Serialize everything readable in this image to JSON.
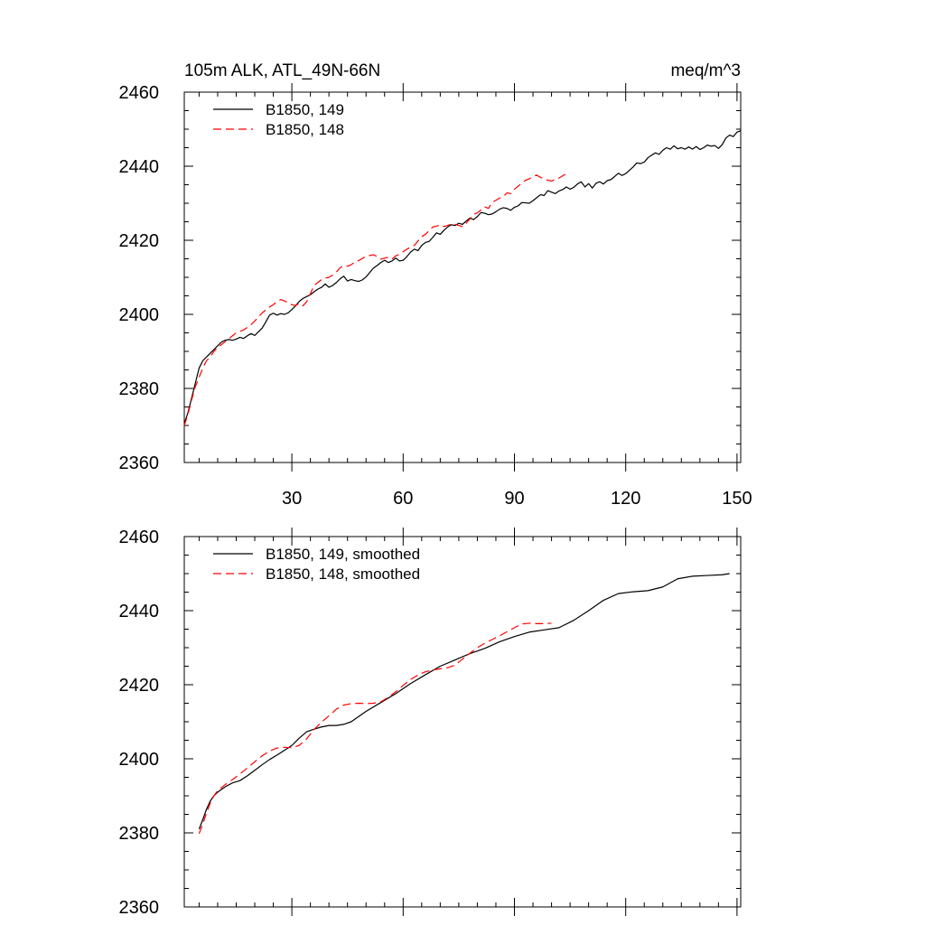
{
  "figure": {
    "left_title": "105m ALK, ATL_49N-66N",
    "right_title": "meq/m^3"
  },
  "chart_data": [
    {
      "type": "line",
      "title": "105m ALK, ATL_49N-66N",
      "units": "meq/m^3",
      "xlim": [
        1,
        151
      ],
      "ylim": [
        2360,
        2460
      ],
      "x_ticks": [
        30,
        60,
        90,
        120,
        150
      ],
      "x_tick_labels": [
        "30",
        "60",
        "90",
        "120",
        "150"
      ],
      "y_ticks": [
        2360,
        2380,
        2400,
        2420,
        2440,
        2460
      ],
      "y_tick_labels": [
        "2360",
        "2380",
        "2400",
        "2420",
        "2440",
        "2460"
      ],
      "legend_position": "top-left",
      "series": [
        {
          "name": "B1850, 149",
          "color": "#000000",
          "dash": "solid",
          "x": [
            1,
            2,
            3,
            4,
            5,
            6,
            7,
            8,
            9,
            10,
            11,
            12,
            13,
            14,
            15,
            16,
            17,
            18,
            19,
            20,
            21,
            22,
            23,
            24,
            25,
            26,
            27,
            28,
            29,
            30,
            31,
            32,
            33,
            34,
            35,
            36,
            37,
            38,
            39,
            40,
            41,
            42,
            43,
            44,
            45,
            46,
            47,
            48,
            49,
            50,
            51,
            52,
            53,
            54,
            55,
            56,
            57,
            58,
            59,
            60,
            61,
            62,
            63,
            64,
            65,
            66,
            67,
            68,
            69,
            70,
            71,
            72,
            73,
            74,
            75,
            76,
            77,
            78,
            79,
            80,
            81,
            82,
            83,
            84,
            85,
            86,
            87,
            88,
            89,
            90,
            91,
            92,
            93,
            94,
            95,
            96,
            97,
            98,
            99,
            100,
            101,
            102,
            103,
            104,
            105,
            106,
            107,
            108,
            109,
            110,
            111,
            112,
            113,
            114,
            115,
            116,
            117,
            118,
            119,
            120,
            121,
            122,
            123,
            124,
            125,
            126,
            127,
            128,
            129,
            130,
            131,
            132,
            133,
            134,
            135,
            136,
            137,
            138,
            139,
            140,
            141,
            142,
            143,
            144,
            145,
            146,
            147,
            148,
            149,
            150,
            151
          ],
          "values": [
            2370.5,
            2373.5,
            2377.5,
            2381.5,
            2385.5,
            2387.5,
            2388.5,
            2389.5,
            2390.5,
            2391.5,
            2392.5,
            2393.0,
            2393.2,
            2393.0,
            2393.3,
            2393.8,
            2393.5,
            2394.2,
            2394.8,
            2394.3,
            2395.3,
            2396.3,
            2398.0,
            2399.8,
            2400.3,
            2399.8,
            2400.2,
            2400.0,
            2400.4,
            2401.3,
            2402.3,
            2403.5,
            2404.3,
            2404.8,
            2405.3,
            2406.1,
            2406.8,
            2407.3,
            2408.2,
            2407.3,
            2407.8,
            2408.6,
            2409.6,
            2410.3,
            2409.0,
            2409.4,
            2409.1,
            2408.9,
            2409.3,
            2410.1,
            2411.3,
            2412.5,
            2413.2,
            2414.0,
            2414.6,
            2414.0,
            2414.4,
            2415.2,
            2414.4,
            2414.6,
            2415.6,
            2416.8,
            2417.6,
            2417.2,
            2418.6,
            2419.4,
            2419.7,
            2420.8,
            2422.0,
            2421.6,
            2422.7,
            2423.6,
            2424.2,
            2424.0,
            2424.6,
            2424.3,
            2425.2,
            2426.0,
            2425.6,
            2426.4,
            2427.5,
            2427.3,
            2426.9,
            2427.1,
            2427.7,
            2428.4,
            2428.8,
            2428.6,
            2428.1,
            2428.9,
            2429.3,
            2430.2,
            2430.1,
            2430.0,
            2430.7,
            2431.5,
            2432.3,
            2432.1,
            2433.4,
            2433.0,
            2432.6,
            2433.3,
            2433.7,
            2434.4,
            2433.8,
            2434.3,
            2435.2,
            2435.8,
            2434.4,
            2435.3,
            2434.1,
            2435.4,
            2435.8,
            2435.2,
            2436.1,
            2436.4,
            2437.2,
            2438.1,
            2437.5,
            2438.0,
            2438.9,
            2439.8,
            2440.9,
            2440.7,
            2441.1,
            2442.3,
            2443.0,
            2443.6,
            2443.2,
            2444.3,
            2445.0,
            2444.6,
            2445.5,
            2444.7,
            2445.0,
            2444.6,
            2445.2,
            2444.6,
            2445.3,
            2444.5,
            2445.0,
            2445.7,
            2445.4,
            2445.6,
            2444.8,
            2445.8,
            2447.6,
            2448.4,
            2448.0,
            2449.2,
            2449.6
          ],
          "x_ext": [],
          "values_ext": []
        },
        {
          "name": "B1850, 148",
          "color": "#ff0000",
          "dash": "dashed",
          "x": [
            1,
            2,
            3,
            4,
            5,
            6,
            7,
            8,
            9,
            10,
            11,
            12,
            13,
            14,
            15,
            16,
            17,
            18,
            19,
            20,
            21,
            22,
            23,
            24,
            25,
            26,
            27,
            28,
            29,
            30,
            31,
            32,
            33,
            34,
            35,
            36,
            37,
            38,
            39,
            40,
            41,
            42,
            43,
            44,
            45,
            46,
            47,
            48,
            49,
            50,
            51,
            52,
            53,
            54,
            55,
            56,
            57,
            58,
            59,
            60,
            61,
            62,
            63,
            64,
            65,
            66,
            67,
            68,
            69,
            70,
            71,
            72,
            73,
            74,
            75,
            76,
            77,
            78,
            79,
            80,
            81,
            82,
            83,
            84,
            85,
            86,
            87,
            88,
            89,
            90,
            91,
            92,
            93,
            94,
            95,
            96,
            97,
            98,
            99,
            100,
            101,
            102,
            103,
            104
          ],
          "values": [
            2370.0,
            2373.0,
            2377.0,
            2380.5,
            2383.0,
            2385.5,
            2387.5,
            2388.5,
            2390.0,
            2391.0,
            2391.8,
            2392.6,
            2393.4,
            2394.2,
            2395.0,
            2395.4,
            2395.8,
            2396.5,
            2397.2,
            2398.2,
            2399.3,
            2400.4,
            2401.2,
            2402.0,
            2402.6,
            2403.5,
            2404.0,
            2403.6,
            2403.2,
            2402.6,
            2402.4,
            2402.9,
            2402.3,
            2403.4,
            2405.6,
            2407.8,
            2408.6,
            2409.4,
            2409.8,
            2410.0,
            2410.6,
            2411.4,
            2412.6,
            2413.2,
            2413.0,
            2413.4,
            2414.2,
            2414.5,
            2415.1,
            2415.7,
            2415.9,
            2416.1,
            2415.6,
            2414.9,
            2415.2,
            2415.4,
            2414.9,
            2415.8,
            2416.2,
            2416.9,
            2417.6,
            2418.1,
            2418.6,
            2419.8,
            2421.0,
            2421.6,
            2422.6,
            2423.6,
            2423.8,
            2424.2,
            2423.7,
            2424.0,
            2424.4,
            2424.3,
            2424.0,
            2423.7,
            2424.6,
            2425.8,
            2427.0,
            2427.4,
            2428.2,
            2429.0,
            2428.6,
            2430.2,
            2430.8,
            2431.4,
            2431.8,
            2432.8,
            2432.6,
            2433.8,
            2434.6,
            2435.4,
            2436.2,
            2436.6,
            2437.2,
            2437.6,
            2437.0,
            2436.6,
            2436.2,
            2436.0,
            2436.4,
            2436.8,
            2437.4,
            2438.0
          ],
          "x_ext": [],
          "values_ext": []
        }
      ]
    },
    {
      "type": "line",
      "title": "",
      "xlim": [
        1,
        151
      ],
      "ylim": [
        2360,
        2460
      ],
      "x_ticks": [
        30,
        60,
        90,
        120,
        150
      ],
      "x_tick_labels": [],
      "y_ticks": [
        2360,
        2380,
        2400,
        2420,
        2440,
        2460
      ],
      "y_tick_labels": [
        "2360",
        "2380",
        "2400",
        "2420",
        "2440",
        "2460"
      ],
      "legend_position": "top-left",
      "series": [
        {
          "name": "B1850, 149, smoothed",
          "color": "#000000",
          "dash": "solid",
          "x": [
            5,
            6,
            7,
            8,
            9,
            10,
            12,
            14,
            16,
            18,
            20,
            22,
            24,
            26,
            28,
            30,
            32,
            34,
            36,
            38,
            40,
            42,
            44,
            46,
            48,
            50,
            54,
            58,
            62,
            66,
            70,
            74,
            78,
            82,
            86,
            90,
            94,
            98,
            102,
            106,
            110,
            114,
            118,
            122,
            126,
            130,
            134,
            138,
            142,
            146,
            148
          ],
          "values": [
            2381.0,
            2383.6,
            2386.4,
            2388.6,
            2390.0,
            2391.0,
            2392.4,
            2393.5,
            2394.1,
            2395.4,
            2396.9,
            2398.4,
            2399.8,
            2401.0,
            2402.3,
            2403.6,
            2405.6,
            2407.3,
            2408.0,
            2408.6,
            2409.0,
            2409.0,
            2409.3,
            2410.0,
            2411.4,
            2412.8,
            2415.2,
            2417.6,
            2420.3,
            2422.7,
            2425.0,
            2426.7,
            2428.4,
            2429.8,
            2431.6,
            2433.0,
            2434.2,
            2434.8,
            2435.4,
            2437.4,
            2440.0,
            2442.8,
            2444.6,
            2445.1,
            2445.4,
            2446.4,
            2448.6,
            2449.3,
            2449.5,
            2449.7,
            2450.0
          ],
          "x_ext": [],
          "values_ext": []
        },
        {
          "name": "B1850, 148, smoothed",
          "color": "#ff0000",
          "dash": "dashed",
          "x": [
            5,
            6,
            7,
            8,
            9,
            10,
            12,
            14,
            16,
            18,
            20,
            22,
            24,
            26,
            28,
            30,
            32,
            34,
            36,
            38,
            40,
            42,
            44,
            46,
            48,
            50,
            52,
            54,
            56,
            58,
            60,
            62,
            64,
            66,
            68,
            70,
            72,
            74,
            76,
            78,
            80,
            82,
            84,
            86,
            88,
            90,
            92,
            94,
            96,
            98,
            100
          ],
          "values": [
            2379.8,
            2382.4,
            2385.4,
            2388.0,
            2390.0,
            2391.4,
            2393.0,
            2394.4,
            2395.9,
            2397.5,
            2399.2,
            2400.8,
            2402.1,
            2402.9,
            2403.1,
            2403.0,
            2403.6,
            2405.4,
            2407.9,
            2409.9,
            2411.6,
            2413.4,
            2414.5,
            2414.9,
            2415.0,
            2414.9,
            2415.0,
            2415.4,
            2416.6,
            2418.1,
            2419.8,
            2421.4,
            2422.6,
            2423.5,
            2424.0,
            2424.3,
            2424.6,
            2425.3,
            2426.9,
            2428.5,
            2430.0,
            2431.2,
            2432.2,
            2433.2,
            2434.3,
            2435.4,
            2436.4,
            2436.6,
            2436.5,
            2436.5,
            2436.6
          ],
          "x_ext": [],
          "values_ext": []
        }
      ]
    }
  ]
}
